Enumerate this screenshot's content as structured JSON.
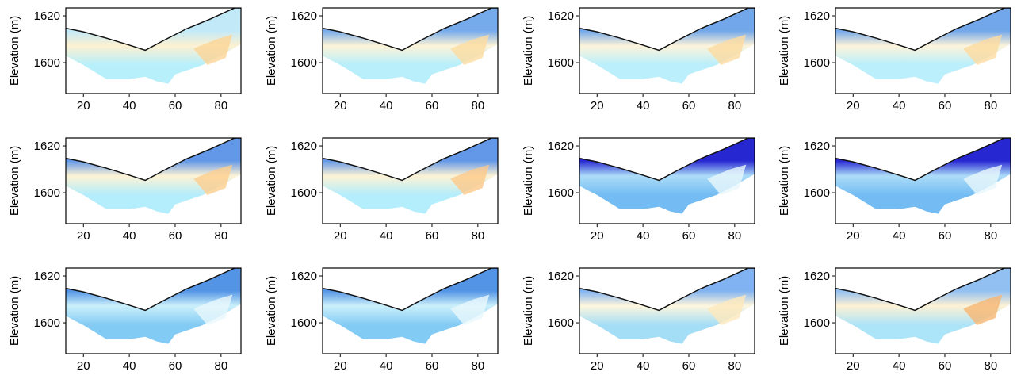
{
  "chart_data": {
    "type": "heatmap",
    "layout": {
      "rows": 3,
      "cols": 4
    },
    "ylabel": "Elevation (m)",
    "xlim": [
      12.3,
      88.7
    ],
    "ylim": [
      1586.8,
      1623.4
    ],
    "xticks": [
      "20",
      "40",
      "60",
      "80"
    ],
    "yticks": [
      "1600",
      "1620"
    ],
    "grid": false,
    "surface_profile": {
      "x": [
        12.3,
        20,
        30,
        40,
        47,
        55,
        65,
        75,
        86,
        88.7
      ],
      "y": [
        1614.7,
        1613.2,
        1610.5,
        1607.5,
        1605.3,
        1609.5,
        1614.5,
        1618.5,
        1623.4,
        1623.4
      ]
    },
    "data_lower_boundary": {
      "x": [
        12.3,
        16,
        20,
        25,
        30,
        40,
        47,
        52,
        57,
        60,
        66,
        72,
        80,
        88.7
      ],
      "y": [
        1603,
        1601,
        1599,
        1596,
        1593,
        1593,
        1594,
        1592,
        1591,
        1595,
        1597,
        1599,
        1603,
        1608
      ]
    },
    "panels": [
      {
        "shallow": "#bfe8f8",
        "middle": "#fdf0cf",
        "deep": "#b3effb",
        "anomaly": "#fbd496"
      },
      {
        "shallow": "#6ea6ea",
        "middle": "#fdf3d6",
        "deep": "#b4eefb",
        "anomaly": "#fcdca0"
      },
      {
        "shallow": "#6aa2e9",
        "middle": "#fdf3d8",
        "deep": "#b6eefb",
        "anomaly": "#fcdba0"
      },
      {
        "shallow": "#6aa2e9",
        "middle": "#fdf3d8",
        "deep": "#b6eefb",
        "anomaly": "#fcdba0"
      },
      {
        "shallow": "#5a92e6",
        "middle": "#fdf2d3",
        "deep": "#b0ecfb",
        "anomaly": "#fcce8e"
      },
      {
        "shallow": "#5a92e6",
        "middle": "#fdf2d3",
        "deep": "#b0ecfb",
        "anomaly": "#fdc98a"
      },
      {
        "shallow": "#1c1cd0",
        "middle": "#a8daf7",
        "deep": "#6cb9f2",
        "anomaly": "#e8f8fb"
      },
      {
        "shallow": "#1c1cd0",
        "middle": "#a8daf7",
        "deep": "#6cb9f2",
        "anomaly": "#e8f8fb"
      },
      {
        "shallow": "#4a8ee4",
        "middle": "#c8effa",
        "deep": "#7cc8f4",
        "anomaly": "#e8f8fb"
      },
      {
        "shallow": "#4a8ee4",
        "middle": "#c8effa",
        "deep": "#7cc8f4",
        "anomaly": "#e8f8fb"
      },
      {
        "shallow": "#7aaef0",
        "middle": "#fef6dc",
        "deep": "#9fdcf6",
        "anomaly": "#fde9bb"
      },
      {
        "shallow": "#8cbcf0",
        "middle": "#fdf1d2",
        "deep": "#a8e2f8",
        "anomaly": "#f6b773"
      }
    ]
  }
}
